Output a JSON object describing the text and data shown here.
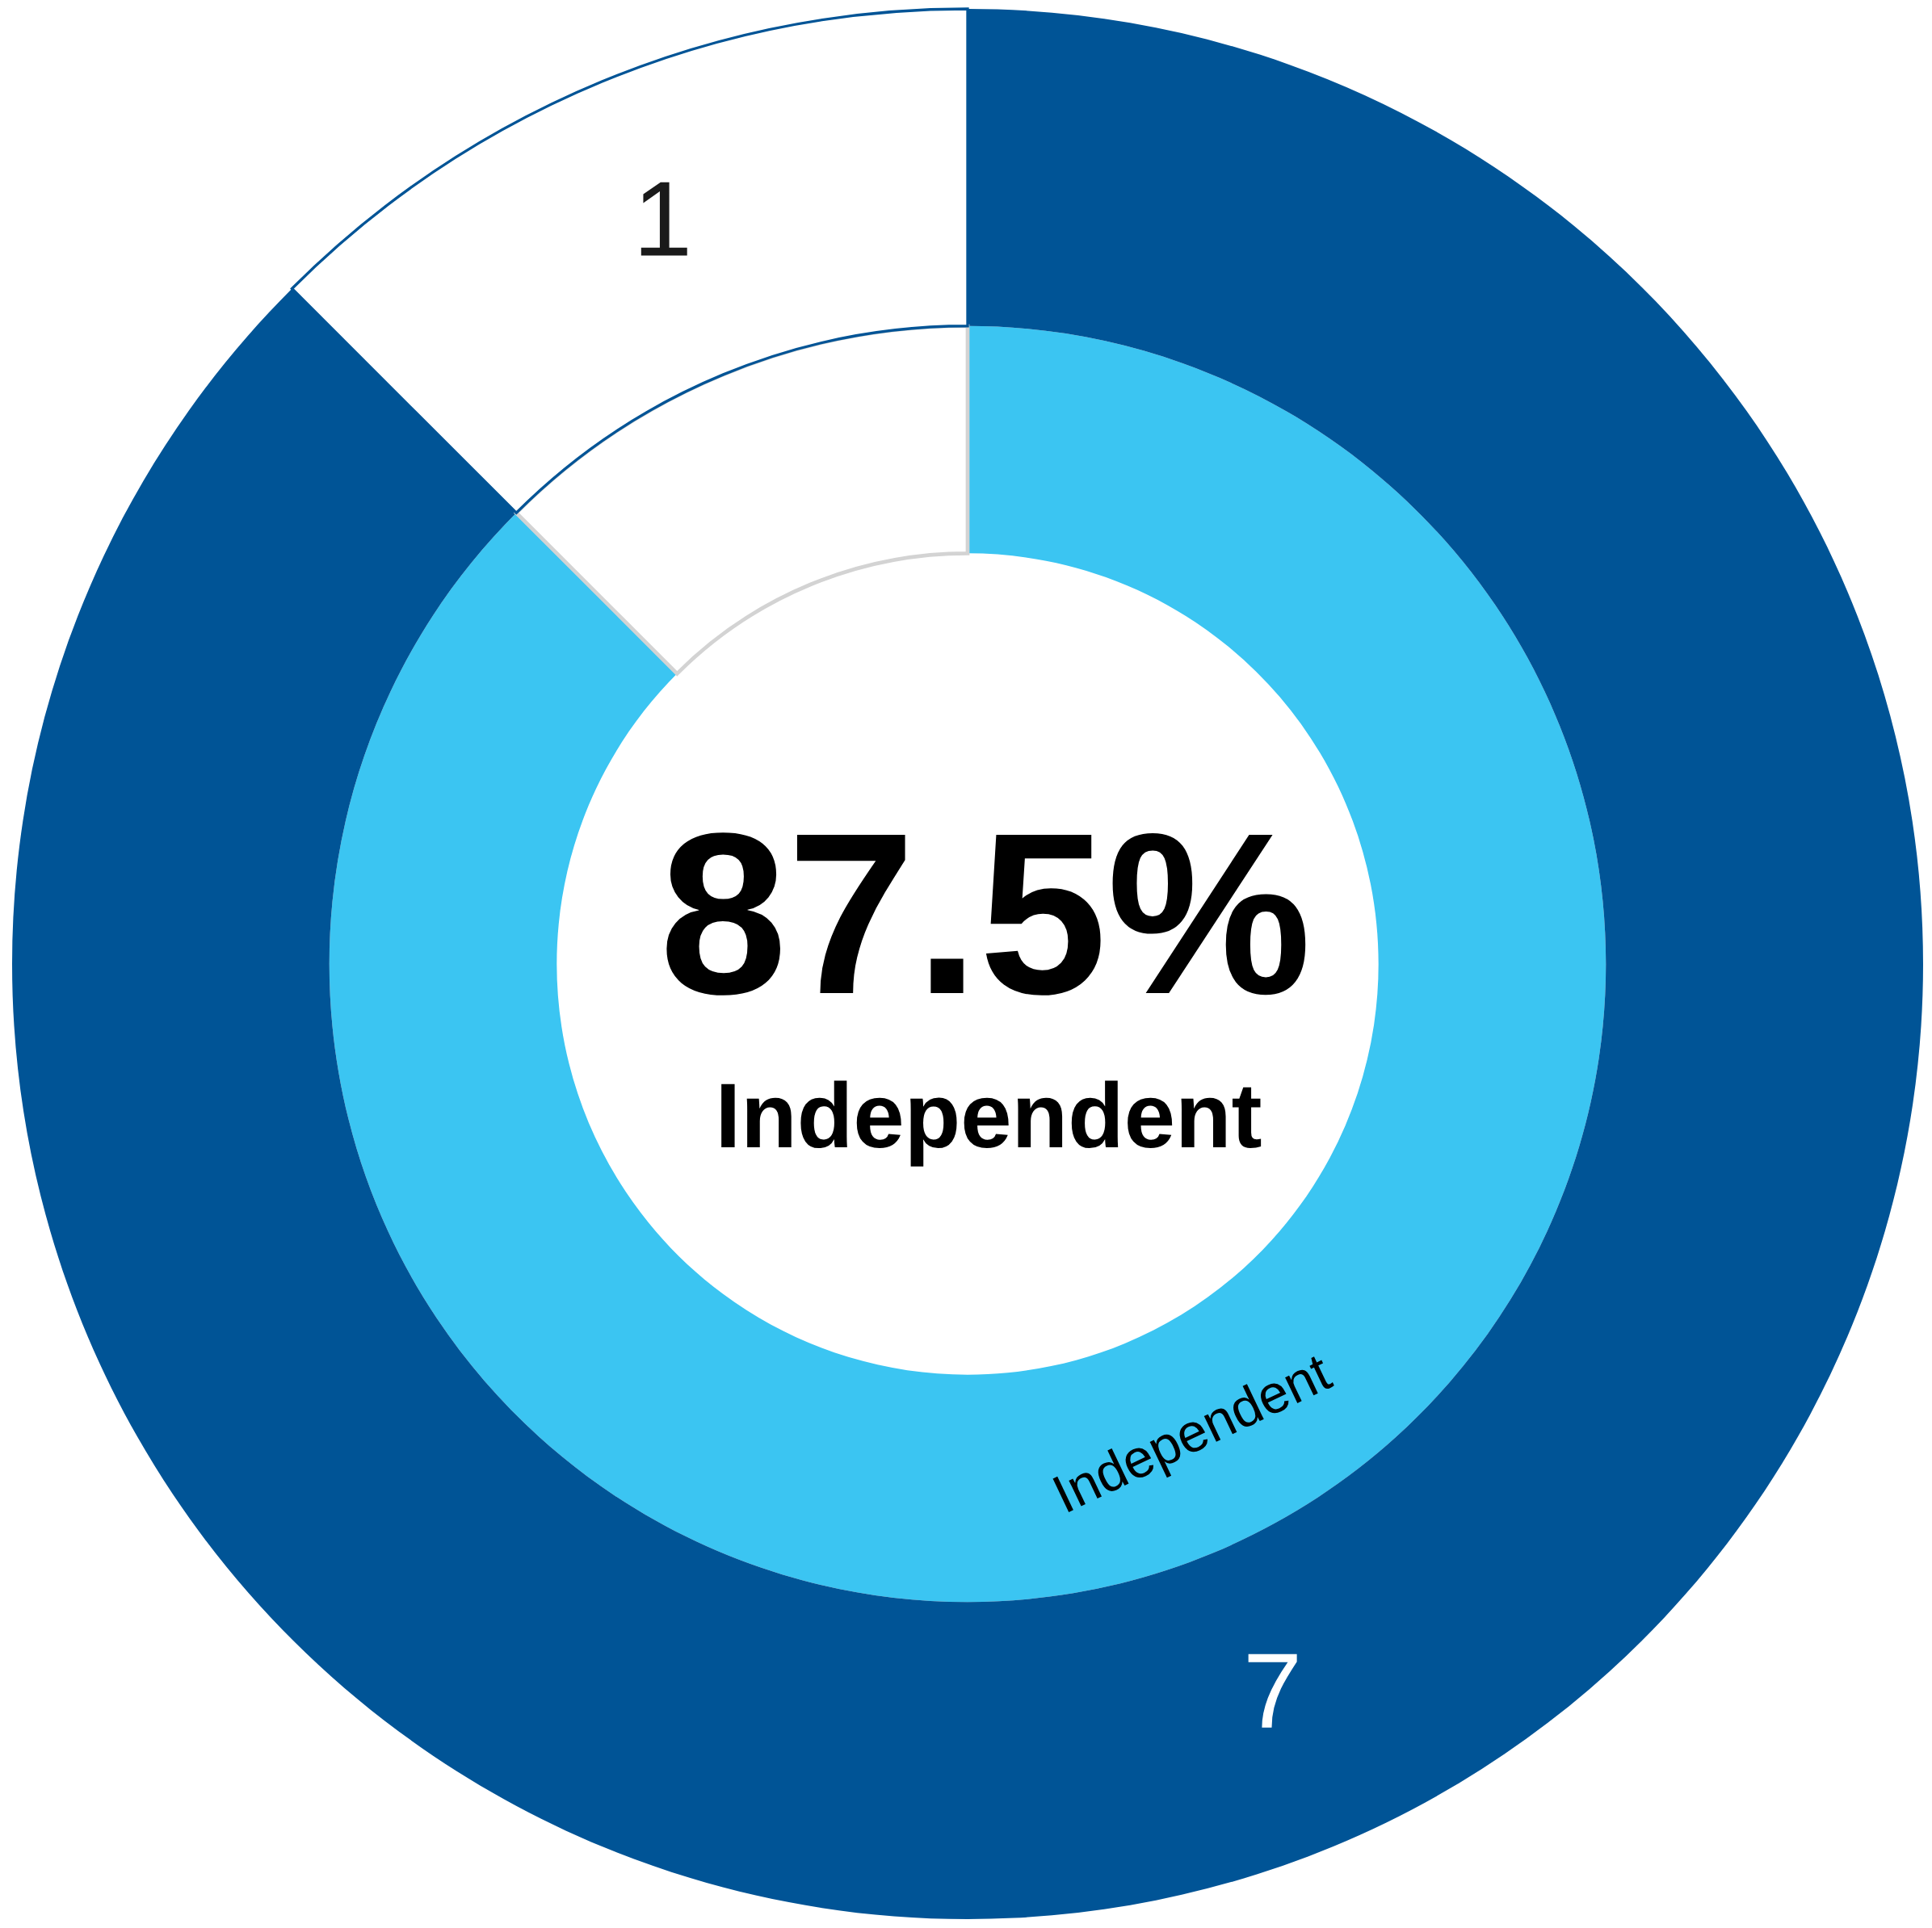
{
  "chart_data": {
    "type": "donut",
    "categories": [
      "Independent",
      null
    ],
    "series": [
      {
        "values": [
          87.5,
          12.5
        ],
        "colors": [
          "#3bc5f2",
          "#ffffff"
        ]
      },
      {
        "values": [
          7,
          1
        ],
        "colors": [
          "#005496",
          "#ffffff"
        ],
        "value_labels": [
          "7",
          "1"
        ]
      }
    ],
    "annotations": [
      "87.5%",
      "Independent"
    ]
  }
}
